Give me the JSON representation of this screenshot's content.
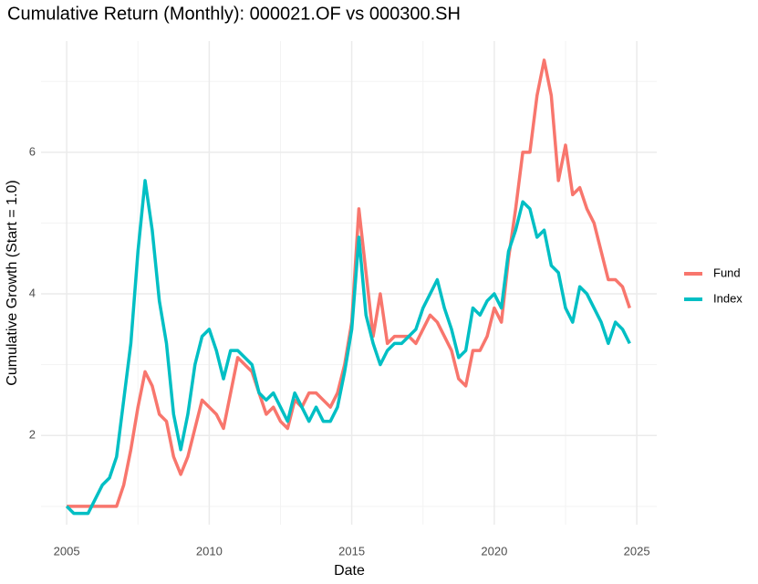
{
  "chart_data": {
    "type": "line",
    "title": "Cumulative Return (Monthly): 000021.OF vs 000300.SH",
    "x_label": "Date",
    "y_label": "Cumulative Growth (Start = 1.0)",
    "x": [
      2005,
      2005.25,
      2005.5,
      2005.75,
      2006,
      2006.25,
      2006.5,
      2006.75,
      2007,
      2007.25,
      2007.5,
      2007.75,
      2008,
      2008.25,
      2008.5,
      2008.75,
      2009,
      2009.25,
      2009.5,
      2009.75,
      2010,
      2010.25,
      2010.5,
      2010.75,
      2011,
      2011.25,
      2011.5,
      2011.75,
      2012,
      2012.25,
      2012.5,
      2012.75,
      2013,
      2013.25,
      2013.5,
      2013.75,
      2014,
      2014.25,
      2014.5,
      2014.75,
      2015,
      2015.25,
      2015.5,
      2015.75,
      2016,
      2016.25,
      2016.5,
      2016.75,
      2017,
      2017.25,
      2017.5,
      2017.75,
      2018,
      2018.25,
      2018.5,
      2018.75,
      2019,
      2019.25,
      2019.5,
      2019.75,
      2020,
      2020.25,
      2020.5,
      2020.75,
      2021,
      2021.25,
      2021.5,
      2021.75,
      2022,
      2022.25,
      2022.5,
      2022.75,
      2023,
      2023.25,
      2023.5,
      2023.75,
      2024,
      2024.25,
      2024.5,
      2024.75
    ],
    "series": [
      {
        "name": "Fund",
        "color": "#F8766D",
        "values": [
          1,
          1,
          1,
          1,
          1,
          1,
          1,
          1,
          1.3,
          1.8,
          2.4,
          2.9,
          2.7,
          2.3,
          2.2,
          1.7,
          1.45,
          1.7,
          2.1,
          2.5,
          2.4,
          2.3,
          2.1,
          2.6,
          3.1,
          3.0,
          2.9,
          2.6,
          2.3,
          2.4,
          2.2,
          2.1,
          2.5,
          2.4,
          2.6,
          2.6,
          2.5,
          2.4,
          2.6,
          3.0,
          3.6,
          5.2,
          4.3,
          3.4,
          4.0,
          3.3,
          3.4,
          3.4,
          3.4,
          3.3,
          3.5,
          3.7,
          3.6,
          3.4,
          3.2,
          2.8,
          2.7,
          3.2,
          3.2,
          3.4,
          3.8,
          3.6,
          4.5,
          5.2,
          6.0,
          6.0,
          6.8,
          7.3,
          6.8,
          5.6,
          6.1,
          5.4,
          5.5,
          5.2,
          5.0,
          4.6,
          4.2,
          4.2,
          4.1,
          3.8
        ]
      },
      {
        "name": "Index",
        "color": "#00BFC4",
        "values": [
          1,
          0.9,
          0.9,
          0.9,
          1.1,
          1.3,
          1.4,
          1.7,
          2.5,
          3.3,
          4.6,
          5.6,
          4.9,
          3.9,
          3.3,
          2.3,
          1.8,
          2.3,
          3.0,
          3.4,
          3.5,
          3.2,
          2.8,
          3.2,
          3.2,
          3.1,
          3.0,
          2.6,
          2.5,
          2.6,
          2.4,
          2.2,
          2.6,
          2.4,
          2.2,
          2.4,
          2.2,
          2.2,
          2.4,
          2.9,
          3.5,
          4.8,
          3.7,
          3.3,
          3.0,
          3.2,
          3.3,
          3.3,
          3.4,
          3.5,
          3.8,
          4.0,
          4.2,
          3.8,
          3.5,
          3.1,
          3.2,
          3.8,
          3.7,
          3.9,
          4.0,
          3.8,
          4.6,
          4.9,
          5.3,
          5.2,
          4.8,
          4.9,
          4.4,
          4.3,
          3.8,
          3.6,
          4.1,
          4.0,
          3.8,
          3.6,
          3.3,
          3.6,
          3.5,
          3.3
        ]
      }
    ],
    "xlim": [
      2004.1,
      2025.7
    ],
    "ylim": [
      0.74,
      7.57
    ],
    "xticks": [
      2005,
      2010,
      2015,
      2020,
      2025
    ],
    "yticks": [
      2,
      4,
      6
    ],
    "x_minor_ticks": [
      2007.5,
      2012.5,
      2017.5,
      2022.5
    ],
    "y_minor_ticks": [
      1,
      3,
      5,
      7
    ],
    "grid": true,
    "legend": "right"
  }
}
